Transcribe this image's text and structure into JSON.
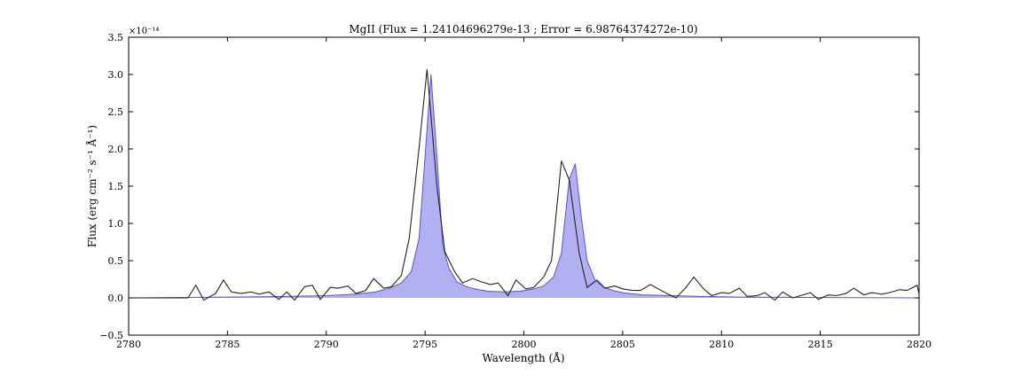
{
  "chart_data": {
    "type": "line",
    "title": "MgII (Flux = 1.24104696279e-13 ; Error = 6.98764374272e-10)",
    "xlabel": "Wavelength (Å)",
    "ylabel": "Flux (erg cm⁻² s⁻¹ Å⁻¹)",
    "y_offset_label": "×10⁻¹⁴",
    "xlim": [
      2780,
      2820
    ],
    "ylim": [
      -0.5,
      3.5
    ],
    "x_ticks": [
      2780,
      2785,
      2790,
      2795,
      2800,
      2805,
      2810,
      2815,
      2820
    ],
    "x_tick_labels": [
      "2780",
      "2785",
      "2790",
      "2795",
      "2800",
      "2805",
      "2810",
      "2815",
      "2820"
    ],
    "y_ticks": [
      -0.5,
      0.0,
      0.5,
      1.0,
      1.5,
      2.0,
      2.5,
      3.0,
      3.5
    ],
    "y_tick_labels": [
      "−0.5",
      "0.0",
      "0.5",
      "1.0",
      "1.5",
      "2.0",
      "2.5",
      "3.0",
      "3.5"
    ],
    "grid": false,
    "colors": {
      "data": "#222222",
      "model_fill": "#b3b0f2",
      "model_line": "#5a52d6"
    },
    "series": [
      {
        "role": "observed",
        "x": [
          2780.0,
          2783.0,
          2783.4,
          2783.8,
          2784.4,
          2784.8,
          2785.2,
          2785.7,
          2786.2,
          2786.6,
          2787.1,
          2787.6,
          2788.0,
          2788.4,
          2788.9,
          2789.3,
          2789.7,
          2790.2,
          2790.6,
          2791.1,
          2791.5,
          2792.0,
          2792.4,
          2792.9,
          2793.3,
          2793.8,
          2794.2,
          2794.7,
          2795.1,
          2795.6,
          2796.0,
          2796.5,
          2796.9,
          2797.4,
          2797.8,
          2798.3,
          2798.7,
          2799.2,
          2799.6,
          2800.1,
          2800.5,
          2801.0,
          2801.4,
          2801.9,
          2802.3,
          2802.8,
          2803.2,
          2803.7,
          2804.1,
          2804.6,
          2805.0,
          2805.5,
          2805.9,
          2806.4,
          2806.8,
          2807.3,
          2807.7,
          2808.2,
          2808.6,
          2809.1,
          2809.5,
          2810.0,
          2810.4,
          2810.9,
          2811.3,
          2811.8,
          2812.2,
          2812.7,
          2813.1,
          2813.6,
          2814.0,
          2814.5,
          2814.9,
          2815.4,
          2815.8,
          2816.3,
          2816.7,
          2817.2,
          2817.6,
          2818.1,
          2818.5,
          2819.0,
          2819.4,
          2819.9,
          2820.0
        ],
        "y": [
          0.0,
          0.0,
          0.17,
          -0.03,
          0.06,
          0.24,
          0.08,
          0.06,
          0.08,
          0.05,
          0.08,
          -0.02,
          0.08,
          -0.03,
          0.15,
          0.17,
          -0.02,
          0.14,
          0.13,
          0.16,
          0.06,
          0.1,
          0.26,
          0.13,
          0.15,
          0.3,
          0.8,
          2.02,
          3.07,
          1.5,
          0.62,
          0.35,
          0.2,
          0.26,
          0.22,
          0.18,
          0.2,
          0.03,
          0.24,
          0.12,
          0.14,
          0.28,
          0.5,
          1.84,
          1.58,
          0.6,
          0.14,
          0.24,
          0.13,
          0.16,
          0.12,
          0.1,
          0.1,
          0.18,
          0.12,
          0.05,
          0.0,
          0.14,
          0.28,
          0.12,
          0.03,
          0.07,
          0.06,
          0.13,
          0.02,
          0.03,
          0.07,
          -0.03,
          0.08,
          0.0,
          0.03,
          0.07,
          -0.02,
          0.04,
          0.03,
          0.06,
          0.13,
          0.04,
          0.07,
          0.05,
          0.07,
          0.11,
          0.1,
          0.17,
          0.05
        ]
      },
      {
        "role": "model",
        "x": [
          2780.0,
          2785.0,
          2788.0,
          2790.0,
          2791.5,
          2792.5,
          2793.2,
          2793.8,
          2794.3,
          2794.7,
          2795.0,
          2795.3,
          2795.6,
          2795.9,
          2796.2,
          2796.6,
          2797.0,
          2797.5,
          2798.2,
          2799.0,
          2799.8,
          2800.5,
          2801.0,
          2801.5,
          2801.9,
          2802.3,
          2802.6,
          2802.9,
          2803.2,
          2803.6,
          2804.0,
          2804.5,
          2805.0,
          2806.0,
          2807.5,
          2809.0,
          2811.0,
          2815.0,
          2820.0
        ],
        "y": [
          0.0,
          0.01,
          0.02,
          0.03,
          0.05,
          0.08,
          0.13,
          0.2,
          0.35,
          0.8,
          1.9,
          3.0,
          1.9,
          0.7,
          0.4,
          0.22,
          0.16,
          0.12,
          0.09,
          0.08,
          0.09,
          0.12,
          0.16,
          0.28,
          0.6,
          1.6,
          1.8,
          1.1,
          0.5,
          0.24,
          0.15,
          0.1,
          0.07,
          0.04,
          0.03,
          0.02,
          0.01,
          0.005,
          0.0
        ]
      }
    ]
  }
}
